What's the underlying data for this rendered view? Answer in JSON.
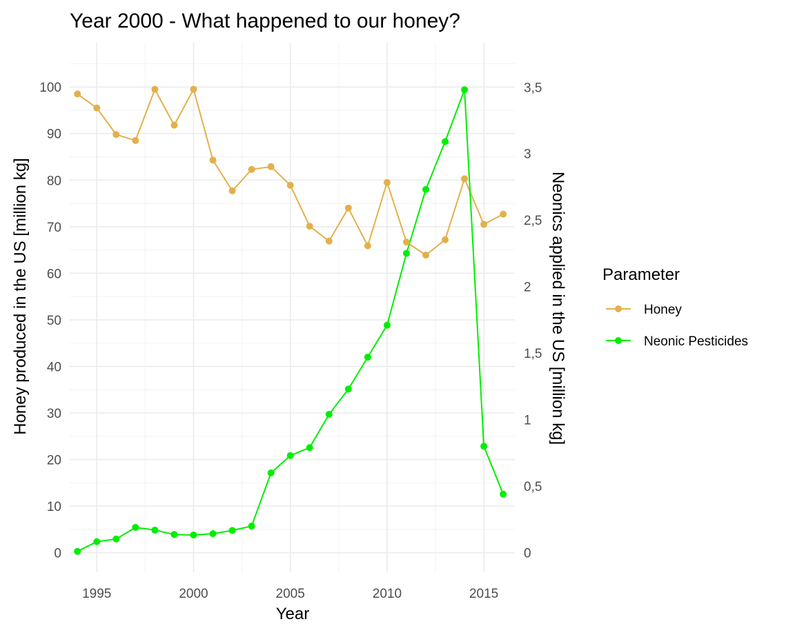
{
  "chart_data": {
    "type": "line",
    "title": "Year 2000 - What happened to our honey?",
    "xlabel": "Year",
    "ylabel": "Honey produced in the US [million kg]",
    "y2label": "Neonics applied in the US [million kg]",
    "xlim": [
      1993.6,
      2016.6
    ],
    "ylim": [
      -4.2,
      109.5
    ],
    "y2lim": [
      -0.147,
      3.833
    ],
    "x_ticks": [
      1995,
      2000,
      2005,
      2010,
      2015
    ],
    "y_ticks": [
      0,
      10,
      20,
      30,
      40,
      50,
      60,
      70,
      80,
      90,
      100
    ],
    "y2_ticks": [
      0,
      0.5,
      1,
      1.5,
      2,
      2.5,
      3,
      3.5
    ],
    "x_tick_labels": [
      "1995",
      "2000",
      "2005",
      "2010",
      "2015"
    ],
    "y_tick_labels": [
      "0",
      "10",
      "20",
      "30",
      "40",
      "50",
      "60",
      "70",
      "80",
      "90",
      "100"
    ],
    "y2_tick_labels": [
      "0",
      "0,5",
      "1",
      "1,5",
      "2",
      "2,5",
      "3",
      "3,5"
    ],
    "grid": true,
    "legend": {
      "title": "Parameter",
      "position": "right",
      "items": [
        "Honey",
        "Neonic Pesticides"
      ]
    },
    "x": [
      1994,
      1995,
      1996,
      1997,
      1998,
      1999,
      2000,
      2001,
      2002,
      2003,
      2004,
      2005,
      2006,
      2007,
      2008,
      2009,
      2010,
      2011,
      2012,
      2013,
      2014,
      2015,
      2016
    ],
    "series": [
      {
        "name": "Honey",
        "axis": "left",
        "color": "#E3B04B",
        "values": [
          98.5,
          95.5,
          89.8,
          88.5,
          99.5,
          91.8,
          99.5,
          84.3,
          77.7,
          82.3,
          82.9,
          78.9,
          70.1,
          66.9,
          74.0,
          65.9,
          79.5,
          66.7,
          63.9,
          67.2,
          80.3,
          70.5,
          72.7
        ]
      },
      {
        "name": "Neonic Pesticides",
        "axis": "right",
        "color": "#00EE00",
        "values": [
          0.01,
          0.083,
          0.103,
          0.19,
          0.17,
          0.137,
          0.133,
          0.143,
          0.167,
          0.2,
          0.6,
          0.73,
          0.79,
          1.04,
          1.23,
          1.47,
          1.71,
          2.25,
          2.73,
          3.09,
          3.48,
          0.8,
          0.44
        ]
      }
    ]
  }
}
